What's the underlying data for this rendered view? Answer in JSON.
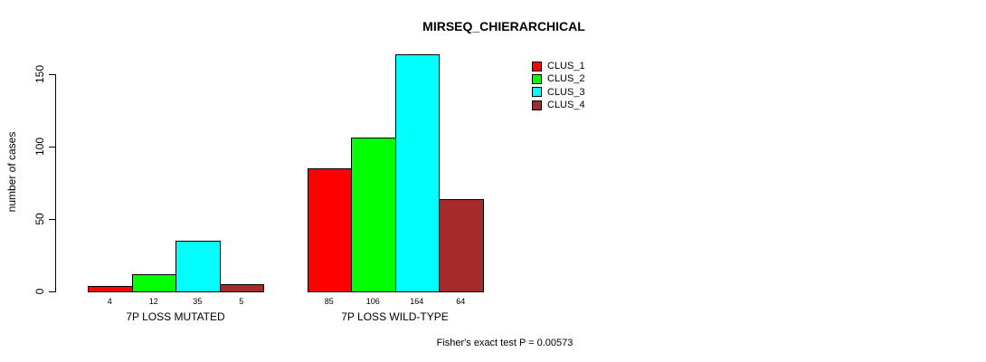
{
  "chart_data": {
    "type": "bar",
    "title": "MIRSEQ_CHIERARCHICAL",
    "ylabel": "number of cases",
    "xlabel": "",
    "categories": [
      "7P LOSS MUTATED",
      "7P LOSS WILD-TYPE"
    ],
    "series": [
      {
        "name": "CLUS_1",
        "color": "#ff0000",
        "values": [
          4,
          85
        ]
      },
      {
        "name": "CLUS_2",
        "color": "#00ff00",
        "values": [
          12,
          106
        ]
      },
      {
        "name": "CLUS_3",
        "color": "#00ffff",
        "values": [
          35,
          164
        ]
      },
      {
        "name": "CLUS_4",
        "color": "#a52a2a",
        "values": [
          5,
          64
        ]
      }
    ],
    "value_labels_shown": true,
    "yticks": [
      0,
      50,
      100,
      150
    ],
    "ylim": [
      0,
      164
    ],
    "grid": false,
    "legend_position": "top-right",
    "annotation": "Fisher's exact test P = 0.00573",
    "background": "#ffffff",
    "bar_outline_color": "#000000"
  }
}
